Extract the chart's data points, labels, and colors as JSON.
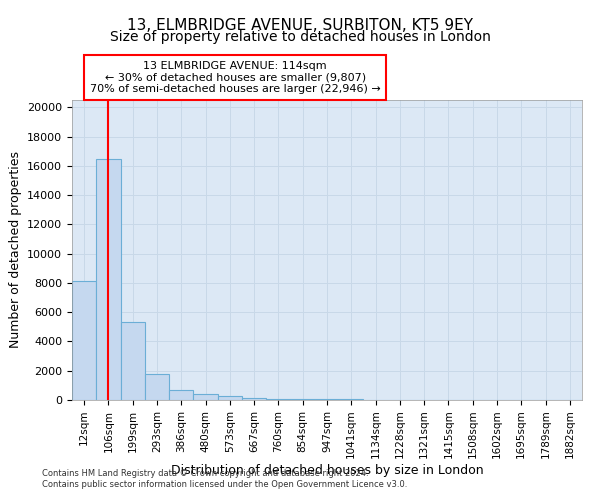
{
  "title1": "13, ELMBRIDGE AVENUE, SURBITON, KT5 9EY",
  "title2": "Size of property relative to detached houses in London",
  "xlabel": "Distribution of detached houses by size in London",
  "ylabel": "Number of detached properties",
  "footnote1": "Contains HM Land Registry data © Crown copyright and database right 2024.",
  "footnote2": "Contains public sector information licensed under the Open Government Licence v3.0.",
  "bar_labels": [
    "12sqm",
    "106sqm",
    "199sqm",
    "293sqm",
    "386sqm",
    "480sqm",
    "573sqm",
    "667sqm",
    "760sqm",
    "854sqm",
    "947sqm",
    "1041sqm",
    "1134sqm",
    "1228sqm",
    "1321sqm",
    "1415sqm",
    "1508sqm",
    "1602sqm",
    "1695sqm",
    "1789sqm",
    "1882sqm"
  ],
  "bar_heights": [
    8100,
    16500,
    5300,
    1800,
    700,
    380,
    240,
    150,
    90,
    60,
    45,
    35,
    25,
    18,
    13,
    10,
    8,
    6,
    5,
    4,
    3
  ],
  "bar_color": "#c5d8ef",
  "bar_edge_color": "#6baed6",
  "annotation_line1": "13 ELMBRIDGE AVENUE: 114sqm",
  "annotation_line2": "← 30% of detached houses are smaller (9,807)",
  "annotation_line3": "70% of semi-detached houses are larger (22,946) →",
  "redline_x": 1.0,
  "ylim": [
    0,
    20500
  ],
  "yticks": [
    0,
    2000,
    4000,
    6000,
    8000,
    10000,
    12000,
    14000,
    16000,
    18000,
    20000
  ],
  "grid_color": "#c8d8e8",
  "plot_bg_color": "#dce8f5",
  "background_color": "#ffffff",
  "title_fontsize": 11,
  "subtitle_fontsize": 10,
  "axis_label_fontsize": 9,
  "tick_fontsize": 8,
  "annot_fontsize": 8
}
